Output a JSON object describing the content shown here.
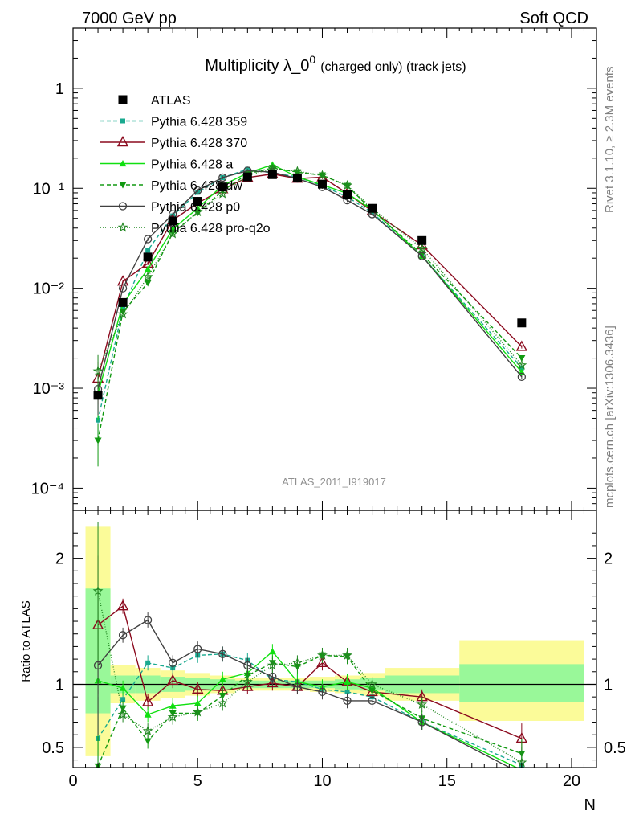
{
  "header": {
    "left": "7000 GeV pp",
    "right": "Soft QCD"
  },
  "side_labels": {
    "rivet": "Rivet 3.1.10, ≥ 2.3M events",
    "source": "mcplots.cern.ch [arXiv:1306.3436]"
  },
  "chart_data": [
    {
      "type": "line",
      "title": "Multiplicity λ_0",
      "title_sup": "0",
      "title_suffix": "(charged only) (track jets)",
      "watermark": "ATLAS_2011_I919017",
      "yscale": "log",
      "xlim": [
        0,
        21
      ],
      "ylim": [
        6e-05,
        4
      ],
      "ytick_labels": [
        "10⁻⁴",
        "10⁻³",
        "10⁻²",
        "10⁻¹",
        "1"
      ],
      "legend_position": "top-left",
      "data": {
        "name": "ATLAS",
        "x": [
          1,
          2,
          3,
          4,
          5,
          6,
          7,
          8,
          9,
          10,
          11,
          12,
          14,
          18
        ],
        "y": [
          0.00085,
          0.0072,
          0.0205,
          0.047,
          0.074,
          0.103,
          0.13,
          0.137,
          0.127,
          0.11,
          0.087,
          0.063,
          0.03,
          0.0045
        ]
      },
      "series": [
        {
          "name": "Pythia 6.428 359",
          "color": "#19a98f",
          "dash": "5,3",
          "marker": "square-small",
          "y": [
            0.00048,
            0.0063,
            0.024,
            0.053,
            0.091,
            0.128,
            0.155,
            0.142,
            0.13,
            0.106,
            0.082,
            0.057,
            0.021,
            0.0016
          ]
        },
        {
          "name": "Pythia 6.428 370",
          "color": "#8b0a1e",
          "dash": "",
          "marker": "triangle-open",
          "y": [
            0.00125,
            0.0117,
            0.0177,
            0.048,
            0.071,
            0.098,
            0.128,
            0.139,
            0.125,
            0.129,
            0.089,
            0.059,
            0.027,
            0.0026
          ]
        },
        {
          "name": "Pythia 6.428 a",
          "color": "#10e010",
          "dash": "",
          "marker": "triangle-up",
          "y": [
            0.00088,
            0.007,
            0.0155,
            0.039,
            0.063,
            0.107,
            0.142,
            0.172,
            0.13,
            0.108,
            0.089,
            0.061,
            0.021,
            0.00145
          ]
        },
        {
          "name": "Pythia 6.428 dw",
          "color": "#119911",
          "dash": "5,3",
          "marker": "triangle-down",
          "y": [
            0.0003,
            0.0058,
            0.0113,
            0.036,
            0.057,
            0.094,
            0.139,
            0.16,
            0.145,
            0.135,
            0.106,
            0.06,
            0.022,
            0.002
          ]
        },
        {
          "name": "Pythia 6.428 p0",
          "color": "#404040",
          "dash": "",
          "marker": "circle-open",
          "y": [
            0.00098,
            0.01,
            0.031,
            0.055,
            0.095,
            0.128,
            0.15,
            0.145,
            0.125,
            0.103,
            0.076,
            0.055,
            0.021,
            0.0013
          ]
        },
        {
          "name": "Pythia 6.428 pro-q2o",
          "color": "#228822",
          "dash": "1,2",
          "marker": "star-open",
          "y": [
            0.00148,
            0.0055,
            0.013,
            0.035,
            0.058,
            0.088,
            0.133,
            0.158,
            0.148,
            0.135,
            0.107,
            0.063,
            0.025,
            0.0017
          ]
        }
      ]
    },
    {
      "type": "line",
      "ylabel": "Ratio to ATLAS",
      "xlabel": "N",
      "xlim": [
        0,
        21
      ],
      "ylim": [
        0.34,
        2.38
      ],
      "yticks": [
        0.5,
        1,
        2
      ],
      "xticks": [
        0,
        5,
        10,
        15,
        20
      ],
      "bands": [
        {
          "x0": 0.5,
          "x1": 1.5,
          "green": [
            0.77,
            1.76
          ],
          "yellow": [
            0.43,
            2.25
          ]
        },
        {
          "x0": 1.5,
          "x1": 2.5,
          "green": [
            0.93,
            1.07
          ],
          "yellow": [
            0.85,
            1.15
          ]
        },
        {
          "x0": 2.5,
          "x1": 3.5,
          "green": [
            0.93,
            1.07
          ],
          "yellow": [
            0.87,
            1.13
          ]
        },
        {
          "x0": 3.5,
          "x1": 4.5,
          "green": [
            0.94,
            1.06
          ],
          "yellow": [
            0.89,
            1.11
          ]
        },
        {
          "x0": 4.5,
          "x1": 5.5,
          "green": [
            0.95,
            1.05
          ],
          "yellow": [
            0.91,
            1.09
          ]
        },
        {
          "x0": 5.5,
          "x1": 6.5,
          "green": [
            0.96,
            1.04
          ],
          "yellow": [
            0.93,
            1.07
          ]
        },
        {
          "x0": 6.5,
          "x1": 7.5,
          "green": [
            0.97,
            1.03
          ],
          "yellow": [
            0.95,
            1.05
          ]
        },
        {
          "x0": 7.5,
          "x1": 8.5,
          "green": [
            0.97,
            1.03
          ],
          "yellow": [
            0.95,
            1.05
          ]
        },
        {
          "x0": 8.5,
          "x1": 9.5,
          "green": [
            0.97,
            1.03
          ],
          "yellow": [
            0.95,
            1.05
          ]
        },
        {
          "x0": 9.5,
          "x1": 10.5,
          "green": [
            0.97,
            1.03
          ],
          "yellow": [
            0.94,
            1.06
          ]
        },
        {
          "x0": 10.5,
          "x1": 11.5,
          "green": [
            0.96,
            1.04
          ],
          "yellow": [
            0.93,
            1.07
          ]
        },
        {
          "x0": 11.5,
          "x1": 12.5,
          "green": [
            0.95,
            1.05
          ],
          "yellow": [
            0.91,
            1.09
          ]
        },
        {
          "x0": 12.5,
          "x1": 15.5,
          "green": [
            0.93,
            1.07
          ],
          "yellow": [
            0.87,
            1.13
          ]
        },
        {
          "x0": 15.5,
          "x1": 20.5,
          "green": [
            0.86,
            1.16
          ],
          "yellow": [
            0.71,
            1.35
          ]
        }
      ],
      "series_ratio": [
        {
          "name": "Pythia 6.428 359",
          "y": [
            0.57,
            0.88,
            1.17,
            1.13,
            1.23,
            1.24,
            1.19,
            1.04,
            1.02,
            0.96,
            0.94,
            0.9,
            0.7,
            0.36
          ]
        },
        {
          "name": "Pythia 6.428 370",
          "y": [
            1.47,
            1.62,
            0.86,
            1.03,
            0.96,
            0.95,
            0.98,
            1.01,
            0.98,
            1.17,
            1.02,
            0.94,
            0.9,
            0.57
          ]
        },
        {
          "name": "Pythia 6.428 a",
          "y": [
            1.03,
            0.97,
            0.76,
            0.83,
            0.85,
            1.04,
            1.09,
            1.26,
            1.02,
            0.98,
            1.02,
            0.97,
            0.7,
            0.32
          ]
        },
        {
          "name": "Pythia 6.428 dw",
          "y": [
            0.35,
            0.81,
            0.55,
            0.77,
            0.77,
            0.91,
            1.07,
            1.17,
            1.14,
            1.23,
            1.22,
            0.95,
            0.73,
            0.45
          ]
        },
        {
          "name": "Pythia 6.428 p0",
          "y": [
            1.15,
            1.39,
            1.51,
            1.17,
            1.28,
            1.24,
            1.15,
            1.06,
            0.98,
            0.94,
            0.87,
            0.87,
            0.7,
            0.29
          ]
        },
        {
          "name": "Pythia 6.428 pro-q2o",
          "y": [
            1.74,
            0.76,
            0.63,
            0.74,
            0.78,
            0.85,
            1.02,
            1.15,
            1.17,
            1.23,
            1.23,
            1.0,
            0.84,
            0.38
          ]
        }
      ]
    }
  ]
}
